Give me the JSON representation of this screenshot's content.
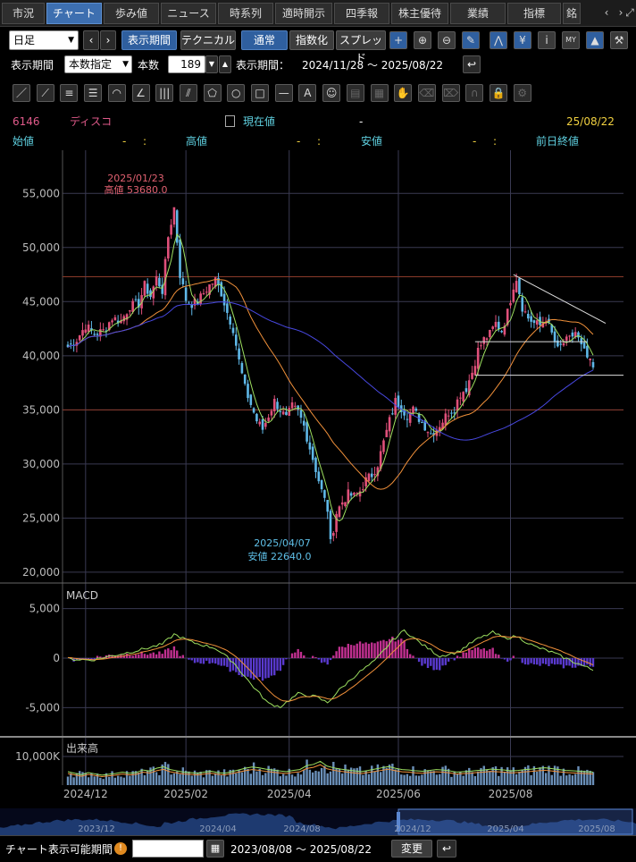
{
  "tabs": [
    "市況",
    "チャート",
    "歩み値",
    "ニュース",
    "時系列",
    "適時開示",
    "四季報",
    "株主優待",
    "業績",
    "指標",
    "銘"
  ],
  "active_tab": 1,
  "tab_nav": [
    "‹",
    "›"
  ],
  "toolbar1": {
    "period_type": "日足",
    "display_period_btn": "表示期間",
    "technical_btn": "テクニカル",
    "mode_normal": "通常",
    "mode_index": "指数化",
    "mode_spread": "スプレッド",
    "icons": [
      "plus-icon",
      "zoom-in-icon",
      "zoom-out-icon",
      "pencil-icon",
      "chart-lines-icon",
      "yen-icon",
      "info-icon",
      "my-icon",
      "area-chart-icon",
      "wrench-icon"
    ]
  },
  "toolbar2": {
    "display_period_label": "表示期間",
    "count_mode": "本数指定",
    "count_label": "本数",
    "count_value": "189",
    "range_label": "表示期間：",
    "range_value": "2024/11/28 ～ 2025/08/22"
  },
  "drawing_tools": [
    "line-tool-icon",
    "ruler-tool-icon",
    "parallel-lines-icon",
    "horizontal-lines-icon",
    "arc-tool-icon",
    "fan-tool-icon",
    "vertical-lines-icon",
    "gann-fan-icon",
    "pentagon-icon",
    "circle-icon",
    "square-icon",
    "hline-icon",
    "text-tool-icon",
    "stamp-icon",
    "copy-icon",
    "list-icon",
    "hand-icon",
    "eraser-icon",
    "eraser-all-icon",
    "magnet-icon",
    "lock-icon",
    "settings-icon"
  ],
  "stock": {
    "code": "6146",
    "name": "ディスコ",
    "current_label": "現在値",
    "current_value": "-",
    "date": "25/08/22",
    "open_label": "始値",
    "open_value": "-",
    "open_time": ":",
    "high_label": "高値",
    "high_value": "-",
    "high_time": ":",
    "low_label": "安値",
    "low_value": "-",
    "low_time": ":",
    "prev_close_label": "前日終値"
  },
  "annotations": {
    "high_date": "2025/01/23",
    "high_text": "高値 53680.0",
    "low_date": "2025/04/07",
    "low_text": "安値 22640.0"
  },
  "macd_label": "MACD",
  "volume_label": "出来高",
  "colors": {
    "up": "#e0507a",
    "down": "#5fb8e8",
    "ma_short": "#9ee060",
    "ma_mid": "#f0903a",
    "ma_long": "#4848e0",
    "grid": "#3a3a52",
    "hline": "#8a3a2a"
  },
  "chart_data": {
    "type": "candlestick",
    "price_axis": {
      "ticks": [
        "55,000",
        "50,000",
        "45,000",
        "40,000",
        "35,000",
        "30,000",
        "25,000",
        "20,000"
      ],
      "min": 19000,
      "max": 57500
    },
    "macd_axis": {
      "ticks": [
        "5,000",
        "0",
        "-5,000"
      ],
      "min": -6500,
      "max": 6500
    },
    "volume_axis": {
      "ticks": [
        "10,000K"
      ]
    },
    "x_ticks": [
      "2024/12",
      "2025/02",
      "2025/04",
      "2025/06",
      "2025/08"
    ],
    "overview_ticks": [
      "2023/12",
      "2024/04",
      "2024/08",
      "2024/12",
      "2025/04",
      "2025/08"
    ],
    "horizontal_lines": [
      47300,
      35000
    ],
    "annotation_high": 53680.0,
    "annotation_low": 22640.0,
    "price_path": [
      [
        0,
        40800
      ],
      [
        3,
        41500
      ],
      [
        6,
        42800
      ],
      [
        9,
        42000
      ],
      [
        12,
        42300
      ],
      [
        15,
        43500
      ],
      [
        18,
        43200
      ],
      [
        21,
        44600
      ],
      [
        24,
        44800
      ],
      [
        26,
        46500
      ],
      [
        28,
        45500
      ],
      [
        30,
        47200
      ],
      [
        32,
        46000
      ],
      [
        34,
        51000
      ],
      [
        36,
        53680
      ],
      [
        38,
        47500
      ],
      [
        40,
        45200
      ],
      [
        42,
        44800
      ],
      [
        44,
        45000
      ],
      [
        46,
        45800
      ],
      [
        48,
        46500
      ],
      [
        50,
        47000
      ],
      [
        52,
        45800
      ],
      [
        54,
        44000
      ],
      [
        56,
        42500
      ],
      [
        58,
        39500
      ],
      [
        60,
        37000
      ],
      [
        62,
        35500
      ],
      [
        64,
        34000
      ],
      [
        66,
        33200
      ],
      [
        68,
        34500
      ],
      [
        70,
        35800
      ],
      [
        72,
        35000
      ],
      [
        74,
        34200
      ],
      [
        76,
        35300
      ],
      [
        78,
        34800
      ],
      [
        80,
        33500
      ],
      [
        82,
        31500
      ],
      [
        84,
        29500
      ],
      [
        86,
        27500
      ],
      [
        88,
        25800
      ],
      [
        89,
        22640
      ],
      [
        91,
        25500
      ],
      [
        93,
        26500
      ],
      [
        95,
        27200
      ],
      [
        97,
        27000
      ],
      [
        99,
        27500
      ],
      [
        101,
        28500
      ],
      [
        103,
        29000
      ],
      [
        105,
        30000
      ],
      [
        107,
        32000
      ],
      [
        109,
        34000
      ],
      [
        111,
        35800
      ],
      [
        113,
        35200
      ],
      [
        115,
        34500
      ],
      [
        117,
        35000
      ],
      [
        119,
        34200
      ],
      [
        121,
        33500
      ],
      [
        123,
        32800
      ],
      [
        125,
        33300
      ],
      [
        127,
        34000
      ],
      [
        129,
        34800
      ],
      [
        131,
        35200
      ],
      [
        133,
        36500
      ],
      [
        135,
        37000
      ],
      [
        137,
        38500
      ],
      [
        139,
        40500
      ],
      [
        141,
        41500
      ],
      [
        143,
        42000
      ],
      [
        145,
        43000
      ],
      [
        147,
        42300
      ],
      [
        149,
        44000
      ],
      [
        151,
        46500
      ],
      [
        152,
        47200
      ],
      [
        154,
        44500
      ],
      [
        156,
        43500
      ],
      [
        158,
        43000
      ],
      [
        160,
        42800
      ],
      [
        162,
        43500
      ],
      [
        164,
        42000
      ],
      [
        166,
        40500
      ],
      [
        168,
        41200
      ],
      [
        170,
        41500
      ],
      [
        172,
        42200
      ],
      [
        174,
        40800
      ],
      [
        176,
        39800
      ],
      [
        178,
        38800
      ]
    ],
    "price_range": {
      "x_max": 178,
      "low": 22640,
      "high": 53680
    },
    "macd_path": [
      [
        0,
        -80
      ],
      [
        8,
        -200
      ],
      [
        16,
        300
      ],
      [
        24,
        800
      ],
      [
        32,
        1400
      ],
      [
        36,
        2400
      ],
      [
        42,
        1600
      ],
      [
        50,
        1000
      ],
      [
        56,
        -400
      ],
      [
        62,
        -2600
      ],
      [
        68,
        -4600
      ],
      [
        72,
        -4900
      ],
      [
        78,
        -3600
      ],
      [
        84,
        -3900
      ],
      [
        88,
        -4500
      ],
      [
        92,
        -3200
      ],
      [
        98,
        -1600
      ],
      [
        104,
        -300
      ],
      [
        110,
        1800
      ],
      [
        114,
        2800
      ],
      [
        120,
        1400
      ],
      [
        126,
        200
      ],
      [
        132,
        600
      ],
      [
        138,
        1800
      ],
      [
        144,
        2600
      ],
      [
        148,
        2000
      ],
      [
        152,
        2200
      ],
      [
        158,
        1200
      ],
      [
        164,
        600
      ],
      [
        170,
        -200
      ],
      [
        178,
        -1200
      ]
    ],
    "volume_values": [
      62,
      55,
      48,
      58,
      52,
      46,
      50,
      54,
      60,
      55,
      58,
      70,
      65,
      78,
      85,
      72,
      66,
      60,
      58,
      55,
      60,
      64,
      58,
      55,
      62,
      70,
      78,
      84,
      80,
      74,
      70,
      66,
      62,
      68,
      72,
      90,
      96,
      110,
      88,
      80,
      74,
      70,
      66,
      62,
      68,
      74,
      80,
      86,
      78,
      72,
      70,
      66,
      64,
      68,
      72,
      70,
      66,
      60,
      62,
      64,
      68,
      70,
      74,
      72,
      70,
      66,
      68,
      72,
      74,
      78,
      80,
      76,
      72,
      68,
      66,
      64,
      62,
      60
    ]
  }
}
